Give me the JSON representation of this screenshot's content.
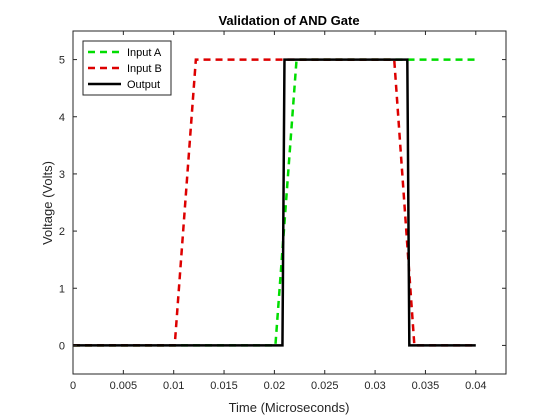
{
  "chart_data": {
    "type": "line",
    "title": "Validation of AND Gate",
    "xlabel": "Time (Microseconds)",
    "ylabel": "Voltage (Volts)",
    "xlim": [
      0,
      0.043
    ],
    "ylim": [
      -0.5,
      5.5
    ],
    "x_ticks": [
      0,
      0.005,
      0.01,
      0.015,
      0.02,
      0.025,
      0.03,
      0.035,
      0.04
    ],
    "x_tick_labels": [
      "0",
      "0.005",
      "0.01",
      "0.015",
      "0.02",
      "0.025",
      "0.03",
      "0.035",
      "0.04"
    ],
    "y_ticks": [
      0,
      1,
      2,
      3,
      4,
      5
    ],
    "y_tick_labels": [
      "0",
      "1",
      "2",
      "3",
      "4",
      "5"
    ],
    "grid": false,
    "legend_position": "top-left",
    "series": [
      {
        "name": "Input A",
        "color": "#00dd00",
        "dash": "dashed",
        "x": [
          0,
          0.0201,
          0.0222,
          0.04
        ],
        "y": [
          0,
          0,
          5,
          5
        ]
      },
      {
        "name": "Input B",
        "color": "#dd0000",
        "dash": "dashed",
        "x": [
          0,
          0.0101,
          0.0122,
          0.0319,
          0.0339,
          0.04
        ],
        "y": [
          0,
          0,
          5,
          5,
          0,
          0
        ]
      },
      {
        "name": "Output",
        "color": "#000000",
        "dash": "solid",
        "x": [
          0,
          0.0208,
          0.021,
          0.0332,
          0.0334,
          0.04
        ],
        "y": [
          0,
          0,
          5,
          5,
          0,
          0
        ]
      }
    ]
  }
}
